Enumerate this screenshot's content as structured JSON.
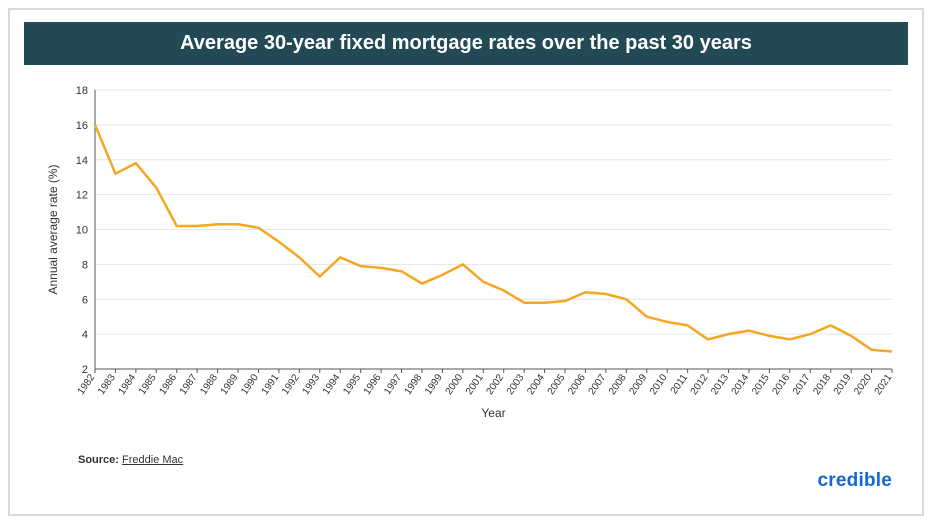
{
  "title": "Average 30-year fixed mortgage rates over the past 30 years",
  "source_label": "Source:",
  "source_name": "Freddie Mac",
  "brand": "credible",
  "chart": {
    "type": "line",
    "xlabel": "Year",
    "ylabel": "Annual average rate (%)",
    "ylim": [
      2,
      18
    ],
    "ytick_step": 2,
    "yticks": [
      2,
      4,
      6,
      8,
      10,
      12,
      14,
      16,
      18
    ],
    "grid_color": "#e5e5e5",
    "axis_color": "#555555",
    "line_color": "#f5a623",
    "line_width": 2.5,
    "background_color": "#ffffff",
    "label_fontsize": 12,
    "tick_fontsize": 11,
    "xtick_fontsize": 10,
    "xtick_rotation": -55,
    "title_bg_color": "#234a54",
    "title_text_color": "#ffffff",
    "title_fontsize": 20,
    "years": [
      1982,
      1983,
      1984,
      1985,
      1986,
      1987,
      1988,
      1989,
      1990,
      1991,
      1992,
      1993,
      1994,
      1995,
      1996,
      1997,
      1998,
      1999,
      2000,
      2001,
      2002,
      2003,
      2004,
      2005,
      2006,
      2007,
      2008,
      2009,
      2010,
      2011,
      2012,
      2013,
      2014,
      2015,
      2016,
      2017,
      2018,
      2019,
      2020,
      2021
    ],
    "values": [
      16.0,
      13.2,
      13.8,
      12.4,
      10.2,
      10.2,
      10.3,
      10.3,
      10.1,
      9.3,
      8.4,
      7.3,
      8.4,
      7.9,
      7.8,
      7.6,
      6.9,
      7.4,
      8.0,
      7.0,
      6.5,
      5.8,
      5.8,
      5.9,
      6.4,
      6.3,
      6.0,
      5.0,
      4.7,
      4.5,
      3.7,
      4.0,
      4.2,
      3.9,
      3.7,
      4.0,
      4.5,
      3.9,
      3.1,
      3.0
    ]
  }
}
